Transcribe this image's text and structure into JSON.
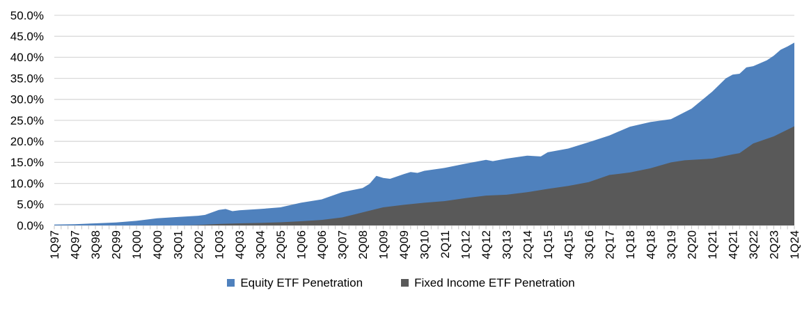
{
  "chart_data": {
    "type": "area",
    "mode": "overlapping",
    "y_axis": {
      "min": 0,
      "max": 50,
      "step": 5,
      "tick_labels_top_to_bottom": [
        "50.0%",
        "45.0%",
        "40.0%",
        "35.0%",
        "30.0%",
        "25.0%",
        "20.0%",
        "15.0%",
        "10.0%",
        "5.0%",
        "0.0%"
      ]
    },
    "x_axis": {
      "total_quarters": 109,
      "label_every_n_quarters": 3,
      "tick_labels": [
        "1Q97",
        "4Q97",
        "3Q98",
        "2Q99",
        "1Q00",
        "4Q00",
        "3Q01",
        "2Q02",
        "1Q03",
        "4Q03",
        "3Q04",
        "2Q05",
        "1Q06",
        "4Q06",
        "3Q07",
        "2Q08",
        "1Q09",
        "4Q09",
        "3Q10",
        "2Q11",
        "1Q12",
        "4Q12",
        "3Q13",
        "2Q14",
        "1Q15",
        "4Q15",
        "3Q16",
        "2Q17",
        "1Q18",
        "4Q18",
        "3Q19",
        "2Q20",
        "1Q21",
        "4Q21",
        "3Q22",
        "2Q23",
        "1Q24"
      ]
    },
    "series": [
      {
        "name": "Equity ETF Penetration",
        "color": "#4f81bd",
        "points": [
          [
            0,
            0.2
          ],
          [
            3,
            0.3
          ],
          [
            6,
            0.5
          ],
          [
            9,
            0.7
          ],
          [
            12,
            1.1
          ],
          [
            15,
            1.7
          ],
          [
            18,
            2.0
          ],
          [
            21,
            2.3
          ],
          [
            22,
            2.5
          ],
          [
            24,
            3.7
          ],
          [
            25,
            3.9
          ],
          [
            26,
            3.4
          ],
          [
            27,
            3.6
          ],
          [
            30,
            3.9
          ],
          [
            33,
            4.3
          ],
          [
            36,
            5.4
          ],
          [
            39,
            6.2
          ],
          [
            42,
            7.9
          ],
          [
            45,
            8.9
          ],
          [
            46,
            9.9
          ],
          [
            47,
            11.8
          ],
          [
            48,
            11.3
          ],
          [
            49,
            11.1
          ],
          [
            51,
            12.2
          ],
          [
            52,
            12.7
          ],
          [
            53,
            12.5
          ],
          [
            54,
            13.0
          ],
          [
            57,
            13.7
          ],
          [
            60,
            14.7
          ],
          [
            63,
            15.6
          ],
          [
            64,
            15.3
          ],
          [
            66,
            15.9
          ],
          [
            69,
            16.6
          ],
          [
            71,
            16.4
          ],
          [
            72,
            17.4
          ],
          [
            75,
            18.3
          ],
          [
            78,
            19.8
          ],
          [
            81,
            21.4
          ],
          [
            84,
            23.5
          ],
          [
            87,
            24.6
          ],
          [
            90,
            25.3
          ],
          [
            93,
            27.8
          ],
          [
            96,
            31.8
          ],
          [
            98,
            35.0
          ],
          [
            99,
            35.9
          ],
          [
            100,
            36.1
          ],
          [
            101,
            37.6
          ],
          [
            102,
            37.9
          ],
          [
            103,
            38.6
          ],
          [
            104,
            39.3
          ],
          [
            105,
            40.4
          ],
          [
            106,
            41.8
          ],
          [
            107,
            42.6
          ],
          [
            108,
            43.5
          ]
        ]
      },
      {
        "name": "Fixed Income ETF Penetration",
        "color": "#595959",
        "points": [
          [
            0,
            0
          ],
          [
            3,
            0
          ],
          [
            6,
            0
          ],
          [
            9,
            0
          ],
          [
            12,
            0
          ],
          [
            15,
            0
          ],
          [
            18,
            0
          ],
          [
            20,
            0.05
          ],
          [
            21,
            0.1
          ],
          [
            24,
            0.35
          ],
          [
            27,
            0.5
          ],
          [
            30,
            0.6
          ],
          [
            33,
            0.75
          ],
          [
            36,
            1.0
          ],
          [
            39,
            1.3
          ],
          [
            42,
            1.9
          ],
          [
            45,
            3.1
          ],
          [
            47,
            3.9
          ],
          [
            48,
            4.3
          ],
          [
            51,
            4.9
          ],
          [
            54,
            5.4
          ],
          [
            57,
            5.8
          ],
          [
            60,
            6.5
          ],
          [
            63,
            7.1
          ],
          [
            66,
            7.3
          ],
          [
            69,
            7.9
          ],
          [
            72,
            8.7
          ],
          [
            75,
            9.4
          ],
          [
            78,
            10.3
          ],
          [
            81,
            12.0
          ],
          [
            84,
            12.6
          ],
          [
            87,
            13.6
          ],
          [
            90,
            15.0
          ],
          [
            92,
            15.5
          ],
          [
            96,
            15.9
          ],
          [
            99,
            16.9
          ],
          [
            100,
            17.2
          ],
          [
            102,
            19.5
          ],
          [
            105,
            21.2
          ],
          [
            108,
            23.6
          ]
        ]
      }
    ],
    "legend_position": "bottom"
  },
  "colors": {
    "gridline": "#d9d9d9",
    "axis_tick": "#c3c3c3",
    "text": "#000000",
    "background": "#ffffff"
  }
}
